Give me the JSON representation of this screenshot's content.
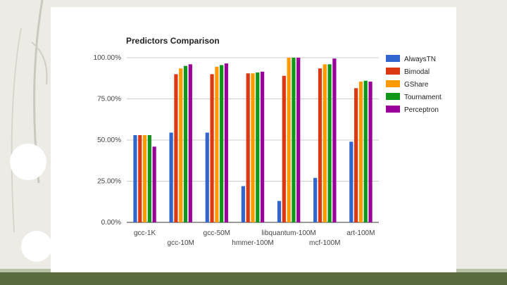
{
  "chart_data": {
    "type": "bar",
    "title": "Predictors Comparison",
    "xlabel": "",
    "ylabel": "",
    "ylim": [
      0,
      1
    ],
    "yticks": [
      {
        "value": 0,
        "label": "0.00%"
      },
      {
        "value": 0.25,
        "label": "25.00%"
      },
      {
        "value": 0.5,
        "label": "50.00%"
      },
      {
        "value": 0.75,
        "label": "75.00%"
      },
      {
        "value": 1.0,
        "label": "100.00%"
      }
    ],
    "grid": true,
    "legend_position": "right",
    "categories": [
      "gcc-1K",
      "gcc-10M",
      "gcc-50M",
      "hmmer-100M",
      "libquantum-100M",
      "mcf-100M",
      "art-100M"
    ],
    "series": [
      {
        "name": "AlwaysTN",
        "color": "#3366cc",
        "values": [
          0.53,
          0.545,
          0.545,
          0.22,
          0.13,
          0.27,
          0.49
        ]
      },
      {
        "name": "Bimodal",
        "color": "#dc3912",
        "values": [
          0.53,
          0.9,
          0.9,
          0.905,
          0.89,
          0.935,
          0.815
        ]
      },
      {
        "name": "GShare",
        "color": "#ff9900",
        "values": [
          0.53,
          0.935,
          0.945,
          0.905,
          1.0,
          0.96,
          0.855
        ]
      },
      {
        "name": "Tournament",
        "color": "#109618",
        "values": [
          0.53,
          0.95,
          0.955,
          0.91,
          1.0,
          0.96,
          0.86
        ]
      },
      {
        "name": "Perceptron",
        "color": "#990099",
        "values": [
          0.46,
          0.96,
          0.965,
          0.915,
          1.0,
          0.995,
          0.855
        ]
      }
    ]
  }
}
